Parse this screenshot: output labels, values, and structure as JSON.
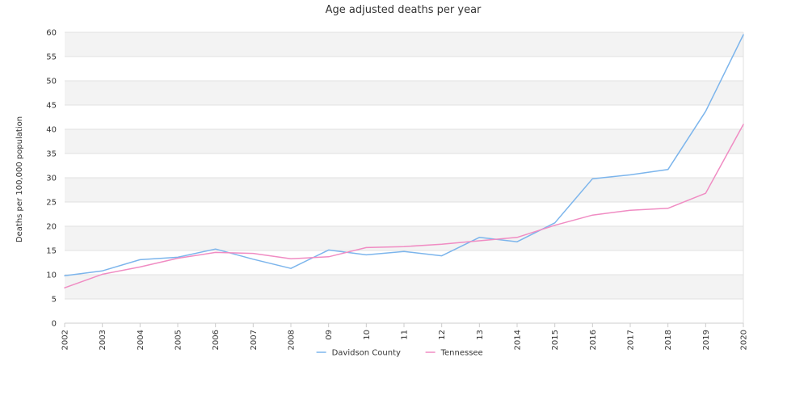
{
  "chart_data": {
    "type": "line",
    "title": "Age adjusted deaths per year",
    "xlabel": "",
    "ylabel": "Deaths per 100,000 population",
    "ylim": [
      0,
      60
    ],
    "yticks": [
      "0",
      "5",
      "10",
      "15",
      "20",
      "25",
      "30",
      "35",
      "40",
      "45",
      "50",
      "55",
      "60"
    ],
    "categories": [
      "2002",
      "2003",
      "2004",
      "2005",
      "2006",
      "2007",
      "2008",
      "09",
      "10",
      "11",
      "12",
      "13",
      "2014",
      "2015",
      "2016",
      "2017",
      "2018",
      "2019",
      "2020"
    ],
    "series": [
      {
        "name": "Davidson County",
        "color": "#7cb5ec",
        "values": [
          9.8,
          10.8,
          13.1,
          13.6,
          15.3,
          13.2,
          11.3,
          15.1,
          14.1,
          14.8,
          13.9,
          17.7,
          16.8,
          20.7,
          29.8,
          30.6,
          31.7,
          43.7,
          59.5
        ]
      },
      {
        "name": "Tennessee",
        "color": "#f08cc3",
        "values": [
          7.3,
          10.1,
          11.6,
          13.4,
          14.6,
          14.4,
          13.3,
          13.7,
          15.6,
          15.8,
          16.3,
          17.0,
          17.7,
          20.2,
          22.3,
          23.3,
          23.7,
          26.8,
          41.0
        ]
      }
    ],
    "grid": true,
    "legend": "bottom-center",
    "band_color": "#f3f3f3",
    "grid_color": "#e0e0e0"
  }
}
